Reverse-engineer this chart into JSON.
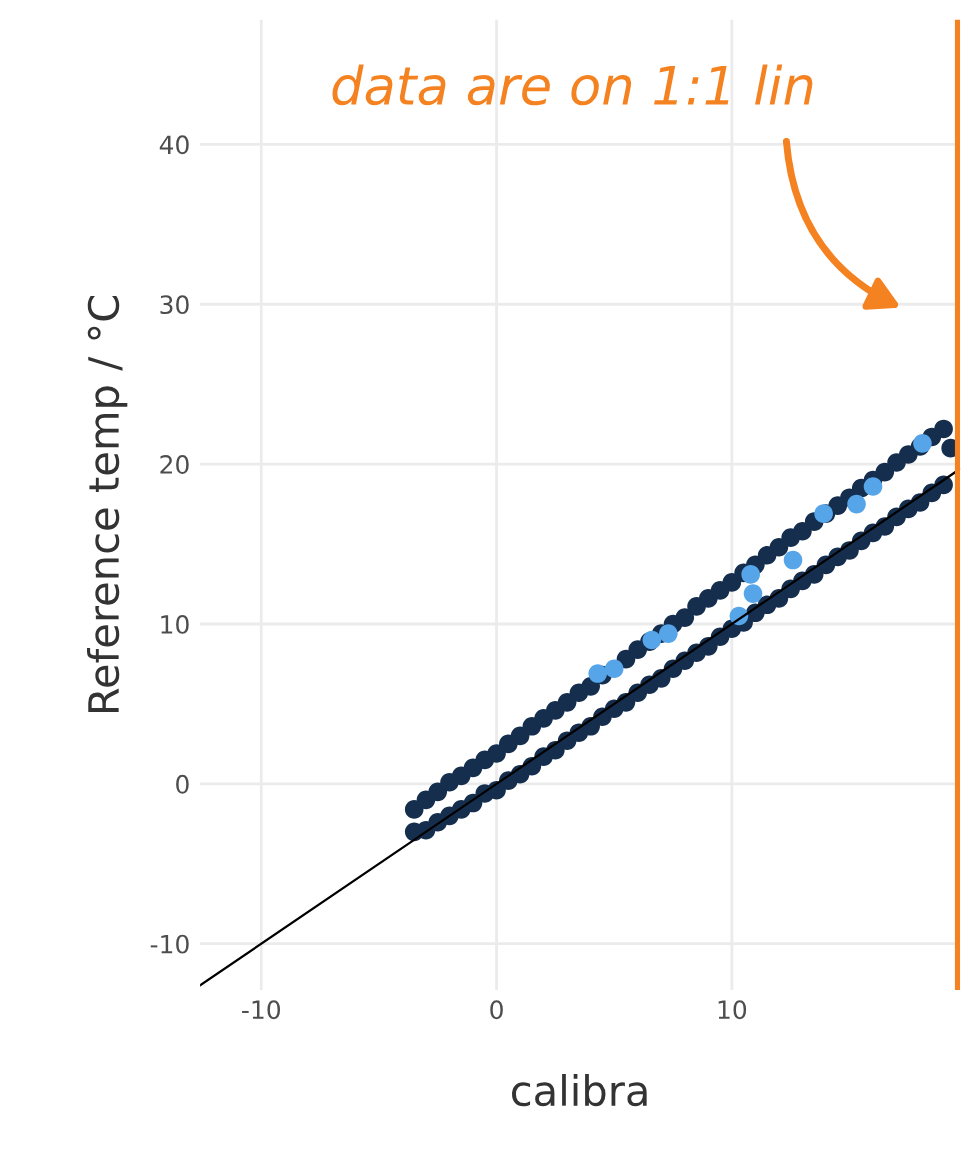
{
  "chart_data": {
    "type": "scatter",
    "xlabel": "calibra",
    "ylabel": "Reference temp / °C",
    "xlim": [
      -12.6,
      19.7
    ],
    "ylim": [
      -12.9,
      47.8
    ],
    "xticks": [
      -10,
      0,
      10
    ],
    "yticks": [
      -10,
      0,
      10,
      20,
      30,
      40
    ],
    "grid": true,
    "marker": "circle",
    "legend": false,
    "series": [
      {
        "type": "line",
        "color": "#000000",
        "x": [
          -12.6,
          19.7
        ],
        "values": [
          -12.6,
          19.7
        ],
        "marker": "none"
      },
      {
        "color": "#152e4d",
        "x": [
          -3.5,
          -3.5,
          -3,
          -3,
          -2.5,
          -2.5,
          -2,
          -2,
          -1.5,
          -1.5,
          -1,
          -1,
          -0.5,
          -0.5,
          0,
          0,
          0.5,
          0.5,
          1,
          1,
          1.5,
          1.5,
          2,
          2,
          2.5,
          2.5,
          3,
          3,
          3.5,
          3.5,
          4,
          4,
          4.5,
          4.5,
          5,
          5.5,
          5.5,
          6,
          6,
          6.5,
          6.5,
          7,
          7,
          7.5,
          7.5,
          8,
          8,
          8.5,
          8.5,
          9,
          9,
          9.5,
          9.5,
          10,
          10,
          10.5,
          10.5,
          11,
          11,
          11.5,
          11.5,
          12,
          12,
          12.5,
          12.5,
          13,
          13,
          13.5,
          13.5,
          14,
          14,
          14.5,
          14.5,
          15,
          15,
          15.5,
          15.5,
          16,
          16,
          16.5,
          16.5,
          17,
          17,
          17.5,
          17.5,
          18,
          18,
          18.5,
          18.5,
          19,
          19,
          19.3
        ],
        "values": [
          -1.6,
          -3.0,
          -1.0,
          -2.9,
          -0.5,
          -2.4,
          0.1,
          -2.0,
          0.5,
          -1.6,
          1.0,
          -1.2,
          1.5,
          -0.6,
          1.9,
          -0.4,
          2.5,
          0.2,
          3.0,
          0.6,
          3.6,
          1.1,
          4.1,
          1.7,
          4.6,
          2.1,
          5.1,
          2.7,
          5.7,
          3.2,
          6.1,
          3.6,
          6.8,
          4.2,
          4.7,
          7.8,
          5.1,
          8.4,
          5.7,
          8.9,
          6.2,
          9.4,
          6.6,
          10.0,
          7.2,
          10.4,
          7.7,
          11.1,
          8.2,
          11.6,
          8.6,
          12.1,
          9.2,
          12.6,
          9.7,
          13.2,
          10.1,
          13.7,
          10.7,
          14.3,
          11.2,
          14.8,
          11.6,
          15.4,
          12.2,
          15.8,
          12.7,
          16.4,
          13.1,
          16.9,
          13.7,
          17.4,
          14.2,
          17.9,
          14.6,
          18.5,
          15.2,
          19.0,
          15.7,
          19.5,
          16.1,
          20.1,
          16.7,
          20.6,
          17.2,
          21.1,
          17.6,
          21.7,
          18.2,
          22.2,
          18.7,
          21.0
        ]
      },
      {
        "color": "#56a5e8",
        "x": [
          4.3,
          5,
          6.6,
          7.3,
          10.3,
          10.8,
          10.9,
          12.6,
          13.9,
          15.3,
          16,
          18.1
        ],
        "values": [
          6.9,
          7.2,
          9,
          9.4,
          10.5,
          13.1,
          11.9,
          14,
          16.9,
          17.5,
          18.6,
          21.3
        ]
      }
    ],
    "ref_lines": [
      {
        "axis": "x",
        "value": 19.6,
        "color": "#f58220"
      }
    ],
    "annotations": [
      "data are on 1:1 lin"
    ]
  }
}
